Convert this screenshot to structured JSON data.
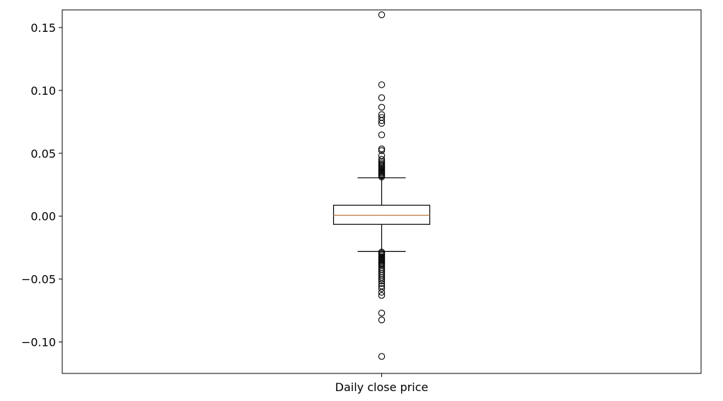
{
  "chart_data": {
    "type": "boxplot",
    "title": "",
    "xlabel": "",
    "ylabel": "",
    "categories": [
      "Daily close price"
    ],
    "ylim": [
      -0.125,
      0.164
    ],
    "yticks": [
      -0.1,
      -0.05,
      0.0,
      0.05,
      0.1,
      0.15
    ],
    "ytick_labels": [
      "−0.10",
      "−0.05",
      "0.00",
      "0.05",
      "0.10",
      "0.15"
    ],
    "grid": false,
    "legend": "none",
    "colors": {
      "box": "#000000",
      "median": "#c0834c",
      "flier": "#000000"
    },
    "box": {
      "q1": -0.0065,
      "median": 0.0007,
      "q3": 0.0087,
      "whisker_low": -0.028,
      "whisker_high": 0.0305
    },
    "fliers": [
      0.1601,
      0.1045,
      0.0942,
      0.0866,
      0.0808,
      0.0785,
      0.076,
      0.0738,
      0.0646,
      0.0535,
      0.0522,
      0.0482,
      0.0452,
      0.0437,
      0.0425,
      0.0413,
      0.0402,
      0.0392,
      0.0382,
      0.0372,
      0.0362,
      0.0352,
      0.0342,
      0.0332,
      0.0322,
      0.0312,
      -0.0285,
      -0.0295,
      -0.0305,
      -0.0315,
      -0.0325,
      -0.0335,
      -0.0345,
      -0.0355,
      -0.0365,
      -0.0375,
      -0.0385,
      -0.0395,
      -0.041,
      -0.0425,
      -0.044,
      -0.0455,
      -0.047,
      -0.0485,
      -0.05,
      -0.0515,
      -0.0535,
      -0.0555,
      -0.0575,
      -0.0605,
      -0.063,
      -0.077,
      -0.0825,
      -0.1115
    ]
  }
}
